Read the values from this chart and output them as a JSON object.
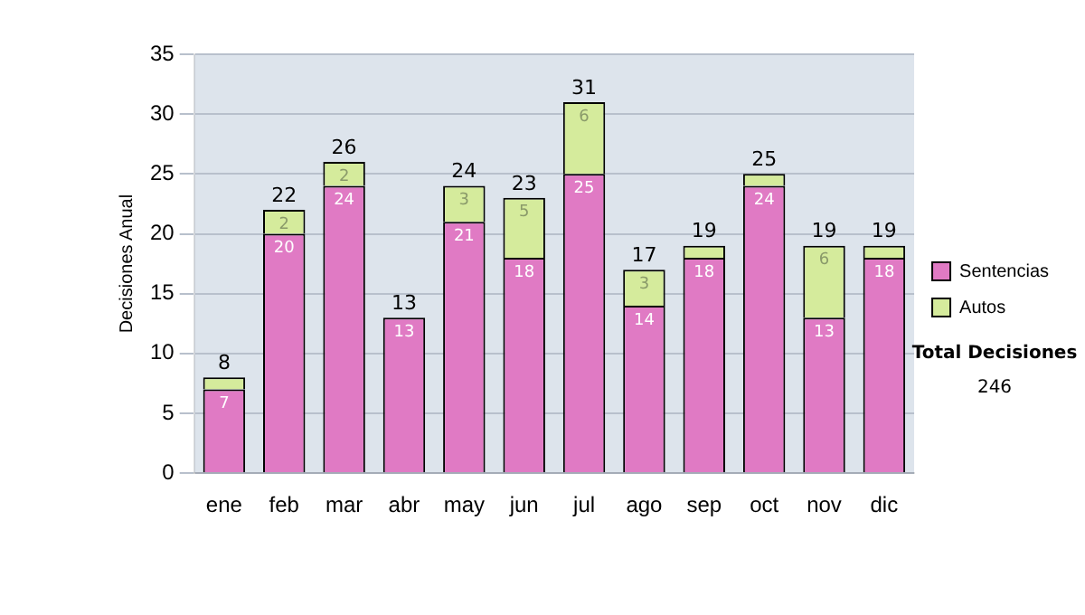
{
  "chart_data": {
    "type": "bar",
    "stacked": true,
    "ylabel": "Decisiones Anual",
    "categories": [
      "ene",
      "feb",
      "mar",
      "abr",
      "may",
      "jun",
      "jul",
      "ago",
      "sep",
      "oct",
      "nov",
      "dic"
    ],
    "series": [
      {
        "name": "Sentencias",
        "color": "#e07ac4",
        "values": [
          7,
          20,
          24,
          13,
          21,
          18,
          25,
          14,
          18,
          24,
          13,
          18
        ],
        "value_labels": [
          "7",
          "20",
          "24",
          "13",
          "21",
          "18",
          "25",
          "14",
          "18",
          "24",
          "13",
          "18"
        ]
      },
      {
        "name": "Autos",
        "color": "#d5eb9c",
        "values": [
          1,
          2,
          2,
          0,
          3,
          5,
          6,
          3,
          1,
          1,
          6,
          1
        ],
        "value_labels": [
          null,
          "2",
          "2",
          null,
          "3",
          "5",
          "6",
          "3",
          null,
          null,
          "6",
          null
        ]
      }
    ],
    "totals": [
      "8",
      "22",
      "26",
      "13",
      "24",
      "23",
      "31",
      "17",
      "19",
      "25",
      "19",
      "19"
    ],
    "ylim": [
      0,
      35
    ],
    "yticks": [
      0,
      5,
      10,
      15,
      20,
      25,
      30,
      35
    ],
    "grid": "y",
    "legend": "right",
    "annotations": [
      "Total Decisiones",
      "246"
    ]
  }
}
